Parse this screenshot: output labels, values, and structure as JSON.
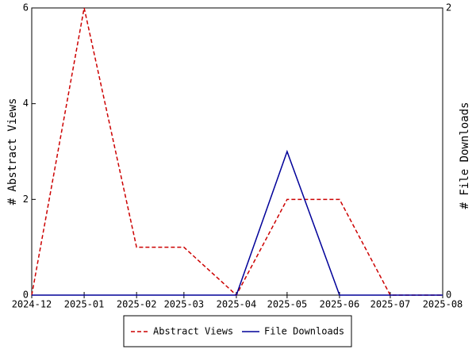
{
  "chart_data": {
    "type": "line",
    "x": [
      "2024-12",
      "2025-01",
      "2025-02",
      "2025-03",
      "2025-04",
      "2025-05",
      "2025-06",
      "2025-07",
      "2025-08"
    ],
    "xlim": [
      "2024-12",
      "2025-08"
    ],
    "xticks": [
      "2024-12",
      "2025-01",
      "2025-02",
      "2025-03",
      "2025-04",
      "2025-05",
      "2025-06",
      "2025-07",
      "2025-08"
    ],
    "ylabel": "# Abstract Views",
    "y2label": "# File Downloads",
    "ylim": [
      0,
      6
    ],
    "yticks": [
      0,
      2,
      4,
      6
    ],
    "y2lim": [
      0,
      2
    ],
    "y2ticks": [
      0,
      2
    ],
    "series": [
      {
        "name": "Abstract Views",
        "color": "#cc0000",
        "dash": true,
        "values": [
          0,
          6,
          1,
          1,
          0,
          2,
          2,
          0,
          0
        ]
      },
      {
        "name": "File Downloads",
        "color": "#000099",
        "dash": false,
        "axis": "y2",
        "values": [
          0,
          0,
          0,
          0,
          0,
          1,
          0,
          0,
          0
        ]
      }
    ],
    "legend": "bottom"
  }
}
